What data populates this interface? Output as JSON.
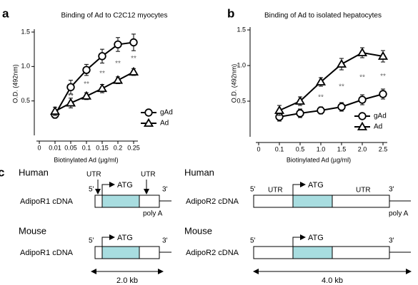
{
  "chart_data": [
    {
      "type": "line",
      "label": "a",
      "title": "Binding of Ad to C2C12 myocytes",
      "xlabel": "Biotinylated Ad (µg/ml)",
      "ylabel": "O.D. (492nm)",
      "categories": [
        "0",
        "0.01",
        "0.05",
        "0.1",
        "0.15",
        "0.2",
        "0.25"
      ],
      "series": [
        {
          "name": "gAd",
          "color": "#000000",
          "marker": "circle",
          "values": [
            null,
            0.3,
            0.7,
            0.95,
            1.15,
            1.32,
            1.35
          ],
          "errors": [
            null,
            0.05,
            0.1,
            0.08,
            0.1,
            0.1,
            0.12
          ]
        },
        {
          "name": "Ad",
          "color": "#000000",
          "marker": "triangle",
          "values": [
            null,
            0.35,
            0.47,
            0.57,
            0.68,
            0.8,
            0.92
          ],
          "errors": [
            null,
            0.06,
            0.07,
            0.05,
            0.06,
            0.05,
            0.05
          ]
        }
      ],
      "annotations": [
        null,
        null,
        "**",
        "**",
        "**",
        "**",
        "**"
      ],
      "ylim": [
        0,
        1.5
      ],
      "yticks": [
        0.5,
        {
          "value": 1,
          "label": "1.0"
        },
        1.5
      ],
      "legend": "lower right"
    },
    {
      "type": "line",
      "label": "b",
      "title": "Binding of Ad to isolated hepatocytes",
      "xlabel": "Biotinylated Ad (µg/ml)",
      "ylabel": "O.D. (492nm)",
      "categories": [
        "0",
        "0.1",
        "0.5",
        "1.0",
        "1.5",
        "2.0",
        "2.5"
      ],
      "series": [
        {
          "name": "gAd",
          "color": "#000000",
          "marker": "circle",
          "values": [
            null,
            0.28,
            0.33,
            0.37,
            0.42,
            0.52,
            0.6
          ],
          "errors": [
            null,
            0.06,
            0.06,
            0.05,
            0.06,
            0.07,
            0.07
          ]
        },
        {
          "name": "Ad",
          "color": "#000000",
          "marker": "triangle",
          "values": [
            null,
            0.37,
            0.5,
            0.77,
            1.02,
            1.18,
            1.13
          ],
          "errors": [
            null,
            0.07,
            0.06,
            0.06,
            0.08,
            0.07,
            0.08
          ]
        }
      ],
      "annotations": [
        null,
        null,
        null,
        "**",
        "**",
        "**",
        "**"
      ],
      "ylim": [
        0,
        1.5
      ],
      "yticks": [
        0.5,
        {
          "value": 1,
          "label": "1.0"
        },
        1.5
      ],
      "legend": "lower right"
    }
  ],
  "diagram": {
    "label": "c",
    "left": {
      "human": {
        "species": "Human",
        "name": "AdipoR1 cDNA",
        "five": "5'",
        "three": "3'",
        "atg": "ATG",
        "utr": [
          "UTR",
          "UTR"
        ],
        "poly": "poly A"
      },
      "mouse": {
        "species": "Mouse",
        "name": "AdipoR1 cDNA",
        "five": "5'",
        "three": "3'",
        "atg": "ATG"
      },
      "scale": "2.0 kb"
    },
    "right": {
      "human": {
        "species": "Human",
        "name": "AdipoR2 cDNA",
        "five": "5'",
        "three": "3'",
        "atg": "ATG",
        "utr": [
          "UTR",
          "UTR"
        ],
        "poly": "poly A"
      },
      "mouse": {
        "species": "Mouse",
        "name": "AdipoR2 cDNA",
        "five": "5'",
        "three": "3'",
        "atg": "ATG"
      },
      "scale": "4.0 kb"
    }
  }
}
